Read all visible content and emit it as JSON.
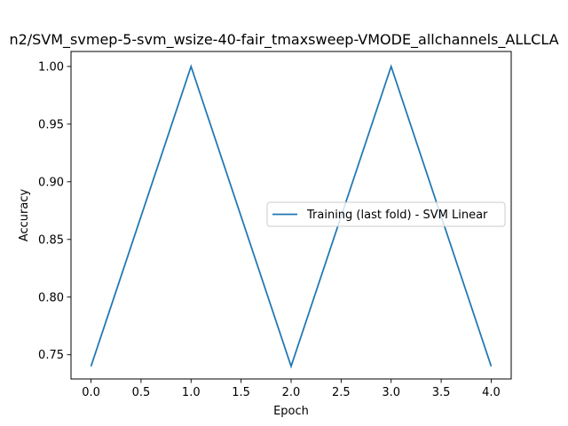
{
  "chart_data": {
    "type": "line",
    "title": "n2/SVM_svmep-5-svm_wsize-40-fair_tmaxsweep-VMODE_allchannels_ALLCLA",
    "xlabel": "Epoch",
    "ylabel": "Accuracy",
    "x": [
      0,
      1,
      2,
      3,
      4
    ],
    "xlim": [
      -0.2,
      4.2
    ],
    "ylim": [
      0.729,
      1.013
    ],
    "x_ticks": [
      "0.0",
      "0.5",
      "1.0",
      "1.5",
      "2.0",
      "2.5",
      "3.0",
      "3.5",
      "4.0"
    ],
    "y_ticks": [
      "0.75",
      "0.80",
      "0.85",
      "0.90",
      "0.95",
      "1.00"
    ],
    "grid": false,
    "legend_position": "center-right",
    "series": [
      {
        "name": "Training (last fold) - SVM Linear",
        "color": "#1f77b4",
        "values": [
          0.74,
          1.0,
          0.74,
          1.0,
          0.74
        ]
      }
    ]
  }
}
